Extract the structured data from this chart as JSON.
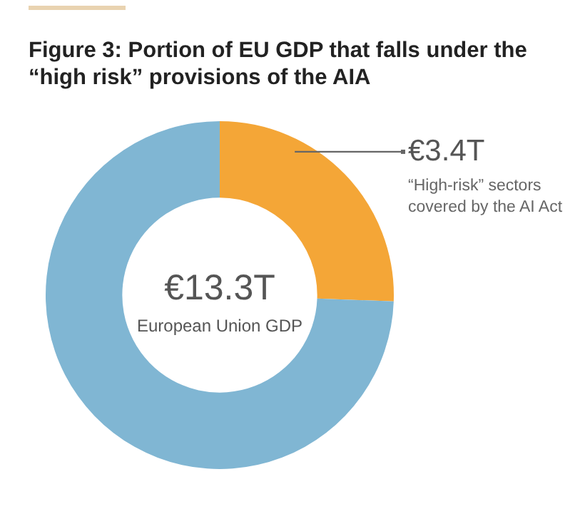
{
  "chart_data": {
    "type": "donut",
    "title": "Figure 3: Portion of EU GDP that falls under the “high risk” provisions of the AIA",
    "categories": [
      "“High-risk” sectors covered by the AI Act",
      null
    ],
    "values": [
      3.4,
      9.9
    ],
    "colors": [
      "#f4a637",
      "#80b6d3"
    ],
    "value_labels": [
      "€3.4T",
      null
    ],
    "annotations": [
      "€13.3T",
      "European Union GDP"
    ]
  }
}
